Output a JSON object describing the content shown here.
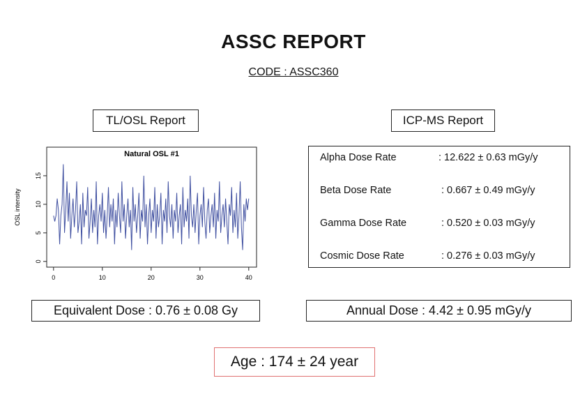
{
  "header": {
    "title": "ASSC REPORT",
    "code": "CODE : ASSC360"
  },
  "left": {
    "heading": "TL/OSL Report",
    "equivalent_dose": "Equivalent Dose : 0.76 ± 0.08 Gy"
  },
  "right": {
    "heading": "ICP-MS Report",
    "rows": [
      {
        "label": "Alpha Dose Rate",
        "value": ": 12.622 ± 0.63 mGy/y"
      },
      {
        "label": "Beta Dose Rate",
        "value": ": 0.667 ± 0.49 mGy/y"
      },
      {
        "label": "Gamma Dose Rate",
        "value": ": 0.520 ± 0.03 mGy/y"
      },
      {
        "label": "Cosmic Dose Rate",
        "value": ": 0.276 ± 0.03 mGy/y"
      }
    ],
    "annual_dose": "Annual Dose : 4.42 ± 0.95 mGy/y"
  },
  "age": "Age : 174 ± 24 year",
  "chart_data": {
    "type": "line",
    "title": "Natural OSL #1",
    "ylabel": "OSL intensity",
    "color": "#3f4fa0",
    "xlim": [
      -1.4,
      41.6
    ],
    "ylim": [
      -1,
      20
    ],
    "xticks": [
      0,
      10,
      20,
      30,
      40
    ],
    "yticks": [
      0,
      5,
      10,
      15
    ],
    "x": [
      0,
      0.25,
      0.5,
      0.75,
      1,
      1.25,
      1.5,
      1.75,
      2,
      2.25,
      2.5,
      2.75,
      3,
      3.25,
      3.5,
      3.75,
      4,
      4.25,
      4.5,
      4.75,
      5,
      5.25,
      5.5,
      5.75,
      6,
      6.25,
      6.5,
      6.75,
      7,
      7.25,
      7.5,
      7.75,
      8,
      8.25,
      8.5,
      8.75,
      9,
      9.25,
      9.5,
      9.75,
      10,
      10.25,
      10.5,
      10.75,
      11,
      11.25,
      11.5,
      11.75,
      12,
      12.25,
      12.5,
      12.75,
      13,
      13.25,
      13.5,
      13.75,
      14,
      14.25,
      14.5,
      14.75,
      15,
      15.25,
      15.5,
      15.75,
      16,
      16.25,
      16.5,
      16.75,
      17,
      17.25,
      17.5,
      17.75,
      18,
      18.25,
      18.5,
      18.75,
      19,
      19.25,
      19.5,
      19.75,
      20,
      20.25,
      20.5,
      20.75,
      21,
      21.25,
      21.5,
      21.75,
      22,
      22.25,
      22.5,
      22.75,
      23,
      23.25,
      23.5,
      23.75,
      24,
      24.25,
      24.5,
      24.75,
      25,
      25.25,
      25.5,
      25.75,
      26,
      26.25,
      26.5,
      26.75,
      27,
      27.25,
      27.5,
      27.75,
      28,
      28.25,
      28.5,
      28.75,
      29,
      29.25,
      29.5,
      29.75,
      30,
      30.25,
      30.5,
      30.75,
      31,
      31.25,
      31.5,
      31.75,
      32,
      32.25,
      32.5,
      32.75,
      33,
      33.25,
      33.5,
      33.75,
      34,
      34.25,
      34.5,
      34.75,
      35,
      35.25,
      35.5,
      35.75,
      36,
      36.25,
      36.5,
      36.75,
      37,
      37.25,
      37.5,
      37.75,
      38,
      38.25,
      38.5,
      38.75,
      39,
      39.25,
      39.5,
      39.75,
      40
    ],
    "values": [
      8,
      7,
      8,
      11,
      9,
      3,
      8,
      10,
      17,
      5,
      9,
      14,
      7,
      12,
      4,
      8,
      11,
      6,
      9,
      14,
      5,
      7,
      10,
      3,
      12,
      6,
      9,
      8,
      13,
      4,
      7,
      11,
      5,
      9,
      6,
      14,
      3,
      8,
      10,
      7,
      12,
      5,
      9,
      4,
      8,
      13,
      6,
      10,
      7,
      11,
      3,
      9,
      6,
      12,
      8,
      5,
      14,
      7,
      10,
      4,
      8,
      11,
      6,
      9,
      2,
      13,
      7,
      10,
      5,
      8,
      12,
      4,
      9,
      7,
      15,
      6,
      10,
      3,
      8,
      11,
      5,
      9,
      7,
      13,
      4,
      10,
      6,
      8,
      12,
      3,
      9,
      7,
      11,
      5,
      14,
      8,
      6,
      10,
      4,
      9,
      7,
      12,
      5,
      8,
      10,
      3,
      13,
      6,
      9,
      7,
      11,
      4,
      15,
      8,
      6,
      10,
      5,
      9,
      12,
      3,
      8,
      10,
      6,
      13,
      7,
      4,
      9,
      11,
      5,
      8,
      10,
      6,
      12,
      4,
      9,
      7,
      14,
      5,
      8,
      10,
      6,
      11,
      7,
      3,
      10,
      8,
      13,
      5,
      9,
      6,
      12,
      4,
      8,
      14,
      6,
      2,
      10,
      7,
      11,
      9,
      11
    ]
  }
}
